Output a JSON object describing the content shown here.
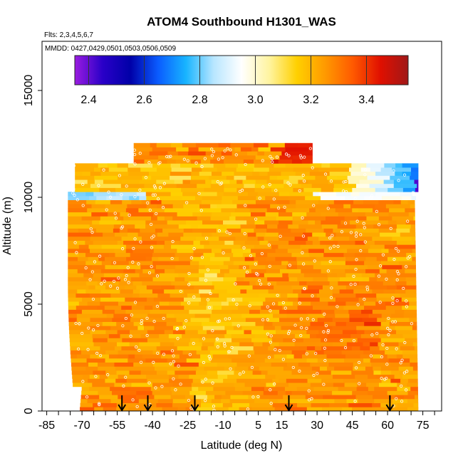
{
  "chart_data": {
    "type": "heatmap",
    "title": "ATOM4 Southbound H1301_WAS",
    "flights_label": "Flts: 2,3,4,5,6,7",
    "dates_label": "MMDD: 0427,0429,0501,0503,0506,0509",
    "xlabel": "Latitude (deg N)",
    "ylabel": "Altitude (m)",
    "xlim": [
      -87,
      83
    ],
    "ylim": [
      0,
      17300
    ],
    "x_ticks": [
      -85,
      -80,
      -75,
      -70,
      -65,
      -60,
      -55,
      -50,
      -45,
      -40,
      -35,
      -30,
      -25,
      -20,
      -15,
      -10,
      -5,
      0,
      5,
      10,
      15,
      20,
      25,
      30,
      35,
      40,
      45,
      50,
      55,
      60,
      65,
      70,
      75,
      80
    ],
    "x_tick_labels": [
      "-85",
      "-70",
      "-55",
      "-40",
      "-25",
      "-10",
      "5",
      "15",
      "30",
      "45",
      "60",
      "75"
    ],
    "x_tick_label_values": [
      -85,
      -70,
      -55,
      -40,
      -25,
      -10,
      5,
      15,
      30,
      45,
      60,
      75
    ],
    "y_ticks": [
      0,
      5000,
      10000,
      15000
    ],
    "y_tick_labels": [
      "0",
      "5000",
      "10000",
      "15000"
    ],
    "colorbar": {
      "range": [
        2.35,
        3.55
      ],
      "ticks": [
        2.4,
        2.6,
        2.8,
        3.0,
        3.2,
        3.4
      ],
      "tick_labels": [
        "2.4",
        "2.6",
        "2.8",
        "3.0",
        "3.2",
        "3.4"
      ],
      "colors": [
        "#9a1ce0",
        "#2a00c8",
        "#0000a8",
        "#0a5cff",
        "#18b4ff",
        "#b8e6ff",
        "#ffffff",
        "#fff4a0",
        "#ffd000",
        "#ff9a00",
        "#ff5a00",
        "#e01000",
        "#a01818"
      ]
    },
    "bins": [
      {
        "y": [
          10200,
          11500
        ],
        "x": [
          -73,
          73
        ],
        "value": 3.18
      },
      {
        "y": [
          9800,
          10200
        ],
        "x": [
          -76,
          72
        ],
        "value": 3.2
      },
      {
        "y": [
          11500,
          12500
        ],
        "x": [
          -48,
          28
        ],
        "value": 3.28
      },
      {
        "y": [
          10200,
          11500
        ],
        "x": [
          40,
          73
        ],
        "value": 2.9
      },
      {
        "y": [
          9800,
          10200
        ],
        "x": [
          -76,
          -45
        ],
        "value": 2.88
      },
      {
        "y": [
          9800,
          10200
        ],
        "x": [
          25,
          72
        ],
        "value": 2.97
      },
      {
        "y": [
          11500,
          12500
        ],
        "x": [
          10,
          28
        ],
        "value": 3.43
      },
      {
        "y": [
          0,
          9800
        ],
        "x": [
          -76,
          73
        ],
        "value": 3.25
      }
    ],
    "flight_markers_lat": [
      -53,
      -42,
      -22,
      18,
      61
    ]
  }
}
